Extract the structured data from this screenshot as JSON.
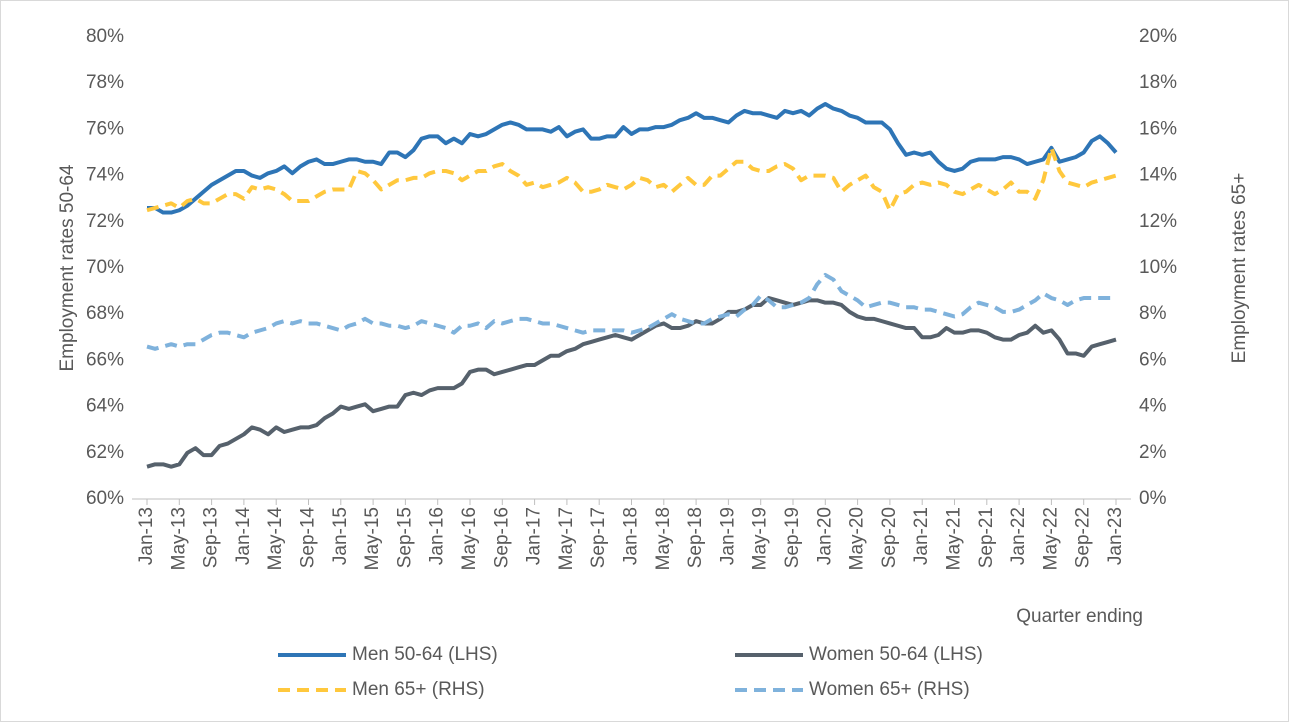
{
  "chart_data": {
    "type": "line",
    "xlabel": "Quarter ending",
    "ylabel": "Employment rates 50-64",
    "y2label": "Employment rates 65+",
    "categories": [
      "Jan-13",
      null,
      null,
      null,
      "May-13",
      null,
      null,
      null,
      "Sep-13",
      null,
      null,
      null,
      "Jan-14",
      null,
      null,
      null,
      "May-14",
      null,
      null,
      null,
      "Sep-14",
      null,
      null,
      null,
      "Jan-15",
      null,
      null,
      null,
      "May-15",
      null,
      null,
      null,
      "Sep-15",
      null,
      null,
      null,
      "Jan-16",
      null,
      null,
      null,
      "May-16",
      null,
      null,
      null,
      "Sep-16",
      null,
      null,
      null,
      "Jan-17",
      null,
      null,
      null,
      "May-17",
      null,
      null,
      null,
      "Sep-17",
      null,
      null,
      null,
      "Jan-18",
      null,
      null,
      null,
      "May-18",
      null,
      null,
      null,
      "Sep-18",
      null,
      null,
      null,
      "Jan-19",
      null,
      null,
      null,
      "May-19",
      null,
      null,
      null,
      "Sep-19",
      null,
      null,
      null,
      "Jan-20",
      null,
      null,
      null,
      "May-20",
      null,
      null,
      null,
      "Sep-20",
      null,
      null,
      null,
      "Jan-21",
      null,
      null,
      null,
      "May-21",
      null,
      null,
      null,
      "Sep-21",
      null,
      null,
      null,
      "Jan-22",
      null,
      null,
      null,
      "May-22",
      null,
      null,
      null,
      "Sep-22",
      null,
      null,
      null,
      "Jan-23"
    ],
    "ylim": [
      60,
      80
    ],
    "yticks": [
      {
        "value": 60,
        "label": "60%"
      },
      {
        "value": 62,
        "label": "62%"
      },
      {
        "value": 64,
        "label": "64%"
      },
      {
        "value": 66,
        "label": "66%"
      },
      {
        "value": 68,
        "label": "68%"
      },
      {
        "value": 70,
        "label": "70%"
      },
      {
        "value": 72,
        "label": "72%"
      },
      {
        "value": 74,
        "label": "74%"
      },
      {
        "value": 76,
        "label": "76%"
      },
      {
        "value": 78,
        "label": "78%"
      },
      {
        "value": 80,
        "label": "80%"
      }
    ],
    "y2lim": [
      0,
      20
    ],
    "y2ticks": [
      {
        "value": 0,
        "label": "0%"
      },
      {
        "value": 2,
        "label": "2%"
      },
      {
        "value": 4,
        "label": "4%"
      },
      {
        "value": 6,
        "label": "6%"
      },
      {
        "value": 8,
        "label": "8%"
      },
      {
        "value": 10,
        "label": "10%"
      },
      {
        "value": 12,
        "label": "12%"
      },
      {
        "value": 14,
        "label": "14%"
      },
      {
        "value": 16,
        "label": "16%"
      },
      {
        "value": 18,
        "label": "18%"
      },
      {
        "value": 20,
        "label": "20%"
      }
    ],
    "legend": "bottom",
    "series": [
      {
        "name": "Men 50-64 (LHS)",
        "color": "#2e75b6",
        "line_style": "solid",
        "axis": "y",
        "values": [
          72.6,
          72.6,
          72.4,
          72.4,
          72.5,
          72.7,
          73.0,
          73.3,
          73.6,
          73.8,
          74.0,
          74.2,
          74.2,
          74.0,
          73.9,
          74.1,
          74.2,
          74.4,
          74.1,
          74.4,
          74.6,
          74.7,
          74.5,
          74.5,
          74.6,
          74.7,
          74.7,
          74.6,
          74.6,
          74.5,
          75.0,
          75.0,
          74.8,
          75.1,
          75.6,
          75.7,
          75.7,
          75.4,
          75.6,
          75.4,
          75.8,
          75.7,
          75.8,
          76.0,
          76.2,
          76.3,
          76.2,
          76.0,
          76.0,
          76.0,
          75.9,
          76.1,
          75.7,
          75.9,
          76.0,
          75.6,
          75.6,
          75.7,
          75.7,
          76.1,
          75.8,
          76.0,
          76.0,
          76.1,
          76.1,
          76.2,
          76.4,
          76.5,
          76.7,
          76.5,
          76.5,
          76.4,
          76.3,
          76.6,
          76.8,
          76.7,
          76.7,
          76.6,
          76.5,
          76.8,
          76.7,
          76.8,
          76.6,
          76.9,
          77.1,
          76.9,
          76.8,
          76.6,
          76.5,
          76.3,
          76.3,
          76.3,
          76.0,
          75.4,
          74.9,
          75.0,
          74.9,
          75.0,
          74.6,
          74.3,
          74.2,
          74.3,
          74.6,
          74.7,
          74.7,
          74.7,
          74.8,
          74.8,
          74.7,
          74.5,
          74.6,
          74.7,
          75.2,
          74.6,
          74.7,
          74.8,
          75.0,
          75.5,
          75.7,
          75.4,
          75.0
        ]
      },
      {
        "name": "Women 50-64 (LHS)",
        "color": "#56616c",
        "line_style": "solid",
        "axis": "y",
        "values": [
          61.4,
          61.5,
          61.5,
          61.4,
          61.5,
          62.0,
          62.2,
          61.9,
          61.9,
          62.3,
          62.4,
          62.6,
          62.8,
          63.1,
          63.0,
          62.8,
          63.1,
          62.9,
          63.0,
          63.1,
          63.1,
          63.2,
          63.5,
          63.7,
          64.0,
          63.9,
          64.0,
          64.1,
          63.8,
          63.9,
          64.0,
          64.0,
          64.5,
          64.6,
          64.5,
          64.7,
          64.8,
          64.8,
          64.8,
          65.0,
          65.5,
          65.6,
          65.6,
          65.4,
          65.5,
          65.6,
          65.7,
          65.8,
          65.8,
          66.0,
          66.2,
          66.2,
          66.4,
          66.5,
          66.7,
          66.8,
          66.9,
          67.0,
          67.1,
          67.0,
          66.9,
          67.1,
          67.3,
          67.5,
          67.6,
          67.4,
          67.4,
          67.5,
          67.7,
          67.6,
          67.6,
          67.8,
          68.1,
          68.1,
          68.2,
          68.4,
          68.4,
          68.7,
          68.6,
          68.5,
          68.4,
          68.5,
          68.6,
          68.6,
          68.5,
          68.5,
          68.4,
          68.1,
          67.9,
          67.8,
          67.8,
          67.7,
          67.6,
          67.5,
          67.4,
          67.4,
          67.0,
          67.0,
          67.1,
          67.4,
          67.2,
          67.2,
          67.3,
          67.3,
          67.2,
          67.0,
          66.9,
          66.9,
          67.1,
          67.2,
          67.5,
          67.2,
          67.3,
          66.9,
          66.3,
          66.3,
          66.2,
          66.6,
          66.7,
          66.8,
          66.9
        ]
      },
      {
        "name": "Men 65+ (RHS)",
        "color": "#ffc83d",
        "line_style": "dashed",
        "axis": "y2",
        "values": [
          12.5,
          12.6,
          12.7,
          12.8,
          12.6,
          12.9,
          13.0,
          12.8,
          12.8,
          13.0,
          13.2,
          13.2,
          13.0,
          13.5,
          13.4,
          13.5,
          13.4,
          13.2,
          12.9,
          12.9,
          12.9,
          13.1,
          13.3,
          13.4,
          13.4,
          13.4,
          14.2,
          14.1,
          13.8,
          13.4,
          13.6,
          13.8,
          13.8,
          13.9,
          13.9,
          14.1,
          14.2,
          14.2,
          14.1,
          13.8,
          14.0,
          14.2,
          14.2,
          14.4,
          14.5,
          14.2,
          14.0,
          13.6,
          13.7,
          13.5,
          13.6,
          13.7,
          13.9,
          13.7,
          13.3,
          13.3,
          13.4,
          13.6,
          13.5,
          13.4,
          13.6,
          13.9,
          13.8,
          13.5,
          13.6,
          13.3,
          13.6,
          13.9,
          13.6,
          13.6,
          14.0,
          14.0,
          14.3,
          14.6,
          14.6,
          14.3,
          14.2,
          14.2,
          14.4,
          14.5,
          14.3,
          13.8,
          14.0,
          14.0,
          14.0,
          13.9,
          13.3,
          13.6,
          13.8,
          14.0,
          13.5,
          13.3,
          12.5,
          13.2,
          13.3,
          13.6,
          13.7,
          13.6,
          13.7,
          13.6,
          13.3,
          13.2,
          13.4,
          13.6,
          13.4,
          13.2,
          13.4,
          13.7,
          13.3,
          13.3,
          13.0,
          13.8,
          15.2,
          14.2,
          13.7,
          13.6,
          13.5,
          13.7,
          13.8,
          13.9,
          14.0
        ]
      },
      {
        "name": "Women 65+ (RHS)",
        "color": "#7fb2dc",
        "line_style": "dashed",
        "axis": "y2",
        "values": [
          6.6,
          6.5,
          6.6,
          6.7,
          6.6,
          6.7,
          6.7,
          6.9,
          7.1,
          7.2,
          7.2,
          7.1,
          7.0,
          7.2,
          7.3,
          7.4,
          7.6,
          7.7,
          7.6,
          7.7,
          7.6,
          7.6,
          7.5,
          7.4,
          7.3,
          7.5,
          7.6,
          7.8,
          7.6,
          7.6,
          7.5,
          7.5,
          7.4,
          7.5,
          7.7,
          7.6,
          7.5,
          7.4,
          7.2,
          7.5,
          7.5,
          7.6,
          7.4,
          7.7,
          7.6,
          7.7,
          7.8,
          7.8,
          7.7,
          7.6,
          7.6,
          7.5,
          7.4,
          7.3,
          7.2,
          7.3,
          7.3,
          7.3,
          7.3,
          7.3,
          7.2,
          7.3,
          7.4,
          7.6,
          7.8,
          8.0,
          7.8,
          7.7,
          7.6,
          7.6,
          7.8,
          7.9,
          8.0,
          7.9,
          8.2,
          8.4,
          8.8,
          8.6,
          8.3,
          8.3,
          8.4,
          8.5,
          8.7,
          9.3,
          9.7,
          9.5,
          9.0,
          8.8,
          8.6,
          8.3,
          8.4,
          8.5,
          8.5,
          8.4,
          8.3,
          8.3,
          8.2,
          8.2,
          8.1,
          8.0,
          7.9,
          8.0,
          8.3,
          8.5,
          8.4,
          8.3,
          8.1,
          8.1,
          8.2,
          8.4,
          8.6,
          8.9,
          8.7,
          8.6,
          8.4,
          8.6,
          8.7,
          8.7,
          8.7,
          8.7,
          8.7
        ]
      }
    ]
  }
}
